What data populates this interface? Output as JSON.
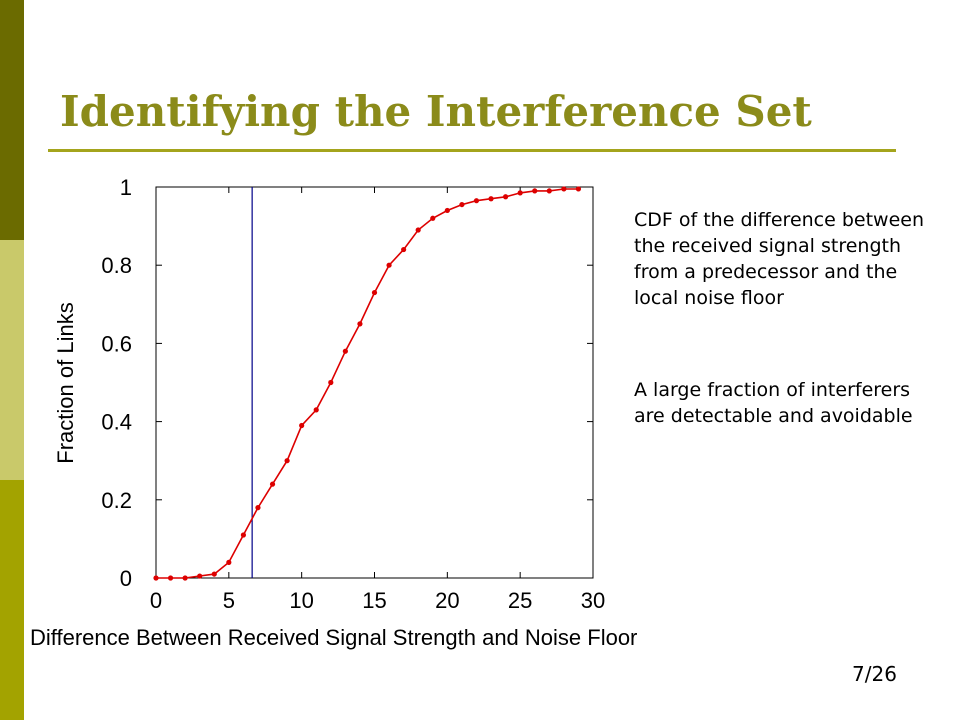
{
  "slide": {
    "title": "Identifying the Interference Set",
    "caption_1": "CDF of the difference between the received signal strength from a predecessor and the local noise floor",
    "caption_2": "A large fraction of interferers are detectable and avoidable",
    "page_number": "7/26"
  },
  "colors": {
    "title": "#8b8b1a",
    "rule": "#a4a41c",
    "sidebar": [
      "#6b6b00",
      "#c9c96a",
      "#a3a300"
    ],
    "series": "#dd0000",
    "marker_line": "#000088"
  },
  "chart_data": {
    "type": "line",
    "title": "",
    "xlabel": "Difference Between Received Signal Strength and Noise Floor",
    "ylabel": "Fraction of Links",
    "xlim": [
      0,
      30
    ],
    "ylim": [
      0,
      1
    ],
    "x_ticks": [
      "0",
      "5",
      "10",
      "15",
      "20",
      "25",
      "30"
    ],
    "y_ticks": [
      "0",
      "0.2",
      "0.4",
      "0.6",
      "0.8",
      "1"
    ],
    "grid": false,
    "vertical_line_x": 6.6,
    "series": [
      {
        "x": [
          0,
          1,
          2,
          3,
          4,
          5,
          6,
          7,
          8,
          9,
          10,
          11,
          12,
          13,
          14,
          15,
          16,
          17,
          18,
          19,
          20,
          21,
          22,
          23,
          24,
          25,
          26,
          27,
          28,
          29
        ],
        "y": [
          0.0,
          0.0,
          0.0,
          0.005,
          0.01,
          0.04,
          0.11,
          0.18,
          0.24,
          0.3,
          0.39,
          0.43,
          0.5,
          0.58,
          0.65,
          0.73,
          0.8,
          0.84,
          0.89,
          0.92,
          0.94,
          0.955,
          0.965,
          0.97,
          0.975,
          0.985,
          0.99,
          0.99,
          0.995,
          0.995
        ]
      }
    ]
  }
}
